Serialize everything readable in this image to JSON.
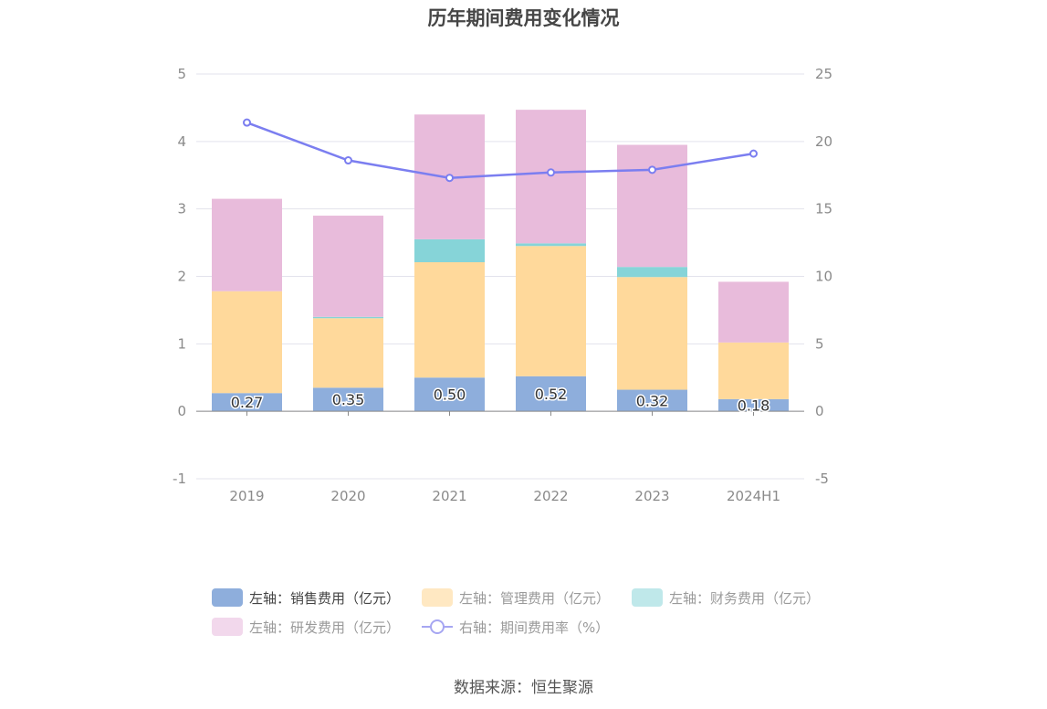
{
  "title": "历年期间费用变化情况",
  "source": "数据来源：恒生聚源",
  "legend": [
    {
      "label": "左轴：销售费用（亿元）",
      "color": "#8eaedc",
      "text_color": "#444444"
    },
    {
      "label": "左轴：管理费用（亿元）",
      "color": "#ffe8c2",
      "text_color": "#9a9a9a"
    },
    {
      "label": "左轴：财务费用（亿元）",
      "color": "#bfe8ea",
      "text_color": "#9a9a9a"
    },
    {
      "label": "左轴：研发费用（亿元）",
      "color": "#f2d8ec",
      "text_color": "#9a9a9a"
    },
    {
      "label": "右轴：期间费用率（%）",
      "color": "#a6a6f2",
      "text_color": "#9a9a9a"
    }
  ],
  "chart_data": {
    "type": "bar",
    "stacked": true,
    "categories": [
      "2019",
      "2020",
      "2021",
      "2022",
      "2023",
      "2024H1"
    ],
    "series": [
      {
        "name": "左轴：销售费用（亿元）",
        "axis": "left",
        "color": "#8eaedc",
        "values": [
          0.27,
          0.35,
          0.5,
          0.52,
          0.32,
          0.18
        ],
        "labels": [
          "0.27",
          "0.35",
          "0.50",
          "0.52",
          "0.32",
          "0.18"
        ]
      },
      {
        "name": "左轴：管理费用（亿元）",
        "axis": "left",
        "color": "#ffd99b",
        "values": [
          1.51,
          1.03,
          1.71,
          1.93,
          1.67,
          0.84
        ]
      },
      {
        "name": "左轴：财务费用（亿元）",
        "axis": "left",
        "color": "#86d4d8",
        "values": [
          0.0,
          0.02,
          0.34,
          0.04,
          0.15,
          0.0
        ]
      },
      {
        "name": "左轴：研发费用（亿元）",
        "axis": "left",
        "color": "#e8bbdb",
        "values": [
          1.37,
          1.5,
          1.85,
          1.98,
          1.81,
          0.9
        ]
      },
      {
        "name": "右轴：期间费用率（%）",
        "axis": "right",
        "type": "line",
        "color": "#7b7ef0",
        "values": [
          21.4,
          18.6,
          17.3,
          17.7,
          17.9,
          19.1
        ]
      }
    ],
    "y_left": {
      "min": -1,
      "max": 5,
      "ticks": [
        -1,
        0,
        1,
        2,
        3,
        4,
        5
      ]
    },
    "y_right": {
      "min": -5,
      "max": 25,
      "ticks": [
        -5,
        0,
        5,
        10,
        15,
        20,
        25
      ]
    },
    "grid": true,
    "legend_position": "bottom"
  }
}
